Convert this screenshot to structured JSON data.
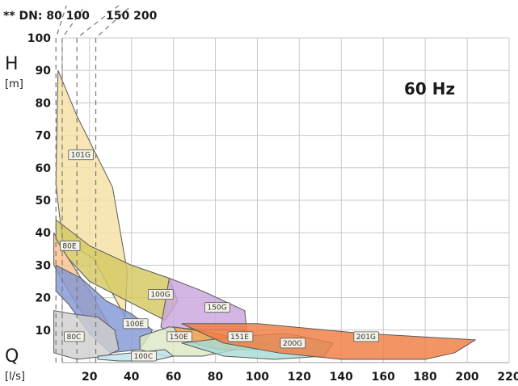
{
  "chart_data": {
    "type": "area",
    "title": "60 Hz",
    "y_label": "H",
    "y_unit": "[m]",
    "x_label": "Q",
    "x_unit": "[l/s]",
    "dn_label": "** DN: 80 100",
    "dn_label2": "150 200",
    "xlim": [
      0,
      220
    ],
    "ylim": [
      0,
      100
    ],
    "x_ticks": [
      20,
      40,
      60,
      80,
      100,
      120,
      140,
      160,
      180,
      200,
      220
    ],
    "y_ticks": [
      10,
      20,
      30,
      40,
      50,
      60,
      70,
      80,
      90,
      100
    ],
    "x_tick_labels": [
      "20",
      "40",
      "60",
      "80",
      "100",
      "120",
      "140",
      "160",
      "180",
      "200",
      "220"
    ],
    "y_tick_labels": [
      "10",
      "20",
      "30",
      "40",
      "50",
      "60",
      "70",
      "80",
      "90",
      "100"
    ],
    "regions": [
      {
        "name": "101G",
        "color": "#f6dfa3",
        "label_at": [
          10,
          63
        ],
        "points": [
          [
            5,
            90
          ],
          [
            14,
            76
          ],
          [
            31,
            54
          ],
          [
            38,
            28
          ],
          [
            37,
            14
          ],
          [
            22,
            32
          ],
          [
            7,
            38
          ],
          [
            4,
            55
          ]
        ]
      },
      {
        "name": "80E",
        "color": "#f8c18c",
        "label_at": [
          6,
          35
        ],
        "points": [
          [
            3,
            40
          ],
          [
            10,
            32
          ],
          [
            22,
            20
          ],
          [
            34,
            6
          ],
          [
            30,
            3
          ],
          [
            20,
            12
          ],
          [
            10,
            22
          ],
          [
            3,
            30
          ]
        ]
      },
      {
        "name": "100E",
        "color": "#8397d6",
        "label_at": [
          36,
          11
        ],
        "points": [
          [
            4,
            30
          ],
          [
            16,
            26
          ],
          [
            28,
            19
          ],
          [
            40,
            15
          ],
          [
            50,
            10
          ],
          [
            44,
            4
          ],
          [
            30,
            3
          ],
          [
            20,
            9
          ],
          [
            10,
            18
          ],
          [
            4,
            22
          ]
        ]
      },
      {
        "name": "100G",
        "color": "#d4c860",
        "label_at": [
          48,
          20
        ],
        "points": [
          [
            4,
            44
          ],
          [
            20,
            36
          ],
          [
            40,
            30
          ],
          [
            58,
            26
          ],
          [
            62,
            19
          ],
          [
            56,
            13
          ],
          [
            44,
            17
          ],
          [
            32,
            21
          ],
          [
            20,
            25
          ],
          [
            10,
            32
          ],
          [
            4,
            38
          ]
        ]
      },
      {
        "name": "150G",
        "color": "#c9a6dd",
        "label_at": [
          75,
          16
        ],
        "points": [
          [
            58,
            26
          ],
          [
            74,
            22
          ],
          [
            94,
            16
          ],
          [
            95,
            9
          ],
          [
            80,
            3
          ],
          [
            60,
            8
          ],
          [
            54,
            11
          ]
        ]
      },
      {
        "name": "150E",
        "color": "#dde8c5",
        "label_at": [
          57,
          7
        ],
        "points": [
          [
            44,
            8
          ],
          [
            58,
            11
          ],
          [
            74,
            10
          ],
          [
            94,
            10
          ],
          [
            90,
            4
          ],
          [
            74,
            2
          ],
          [
            56,
            2
          ],
          [
            44,
            4
          ]
        ]
      },
      {
        "name": "151E",
        "color": "#f2a14a",
        "label_at": [
          86,
          7
        ],
        "points": [
          [
            60,
            11
          ],
          [
            80,
            9
          ],
          [
            100,
            6
          ],
          [
            106,
            6
          ],
          [
            100,
            4
          ],
          [
            82,
            4
          ],
          [
            64,
            7
          ]
        ]
      },
      {
        "name": "200G",
        "color": "#a8dcd4",
        "label_at": [
          111,
          5
        ],
        "points": [
          [
            64,
            6
          ],
          [
            90,
            8
          ],
          [
            114,
            9
          ],
          [
            136,
            6
          ],
          [
            132,
            2
          ],
          [
            108,
            1
          ],
          [
            84,
            2
          ]
        ]
      },
      {
        "name": "201G",
        "color": "#f07d42",
        "label_at": [
          146,
          7
        ],
        "points": [
          [
            64,
            12
          ],
          [
            100,
            12
          ],
          [
            150,
            9
          ],
          [
            204,
            7
          ],
          [
            194,
            3
          ],
          [
            180,
            1
          ],
          [
            140,
            1
          ],
          [
            110,
            3
          ],
          [
            84,
            6
          ]
        ]
      },
      {
        "name": "80C",
        "color": "#cfcfcf",
        "label_at": [
          8,
          7
        ],
        "points": [
          [
            3,
            16
          ],
          [
            12,
            15
          ],
          [
            24,
            14
          ],
          [
            32,
            10
          ],
          [
            34,
            4
          ],
          [
            28,
            2
          ],
          [
            14,
            1
          ],
          [
            3,
            3
          ]
        ]
      },
      {
        "name": "100C",
        "color": "#bfe3ee",
        "label_at": [
          40,
          1
        ],
        "points": [
          [
            24,
            2
          ],
          [
            40,
            3
          ],
          [
            56,
            4
          ],
          [
            60,
            2
          ],
          [
            50,
            0.5
          ],
          [
            34,
            0.5
          ],
          [
            24,
            1
          ]
        ]
      }
    ],
    "dn_dashes": [
      {
        "points": [
          [
            4,
            0
          ],
          [
            4,
            100
          ],
          [
            9,
            110
          ]
        ]
      },
      {
        "points": [
          [
            7,
            0
          ],
          [
            7,
            100
          ],
          [
            18,
            110
          ]
        ]
      },
      {
        "points": [
          [
            14,
            0
          ],
          [
            14,
            100
          ],
          [
            34,
            110
          ]
        ]
      },
      {
        "points": [
          [
            23,
            0
          ],
          [
            23,
            100
          ],
          [
            40,
            110
          ]
        ]
      }
    ]
  }
}
